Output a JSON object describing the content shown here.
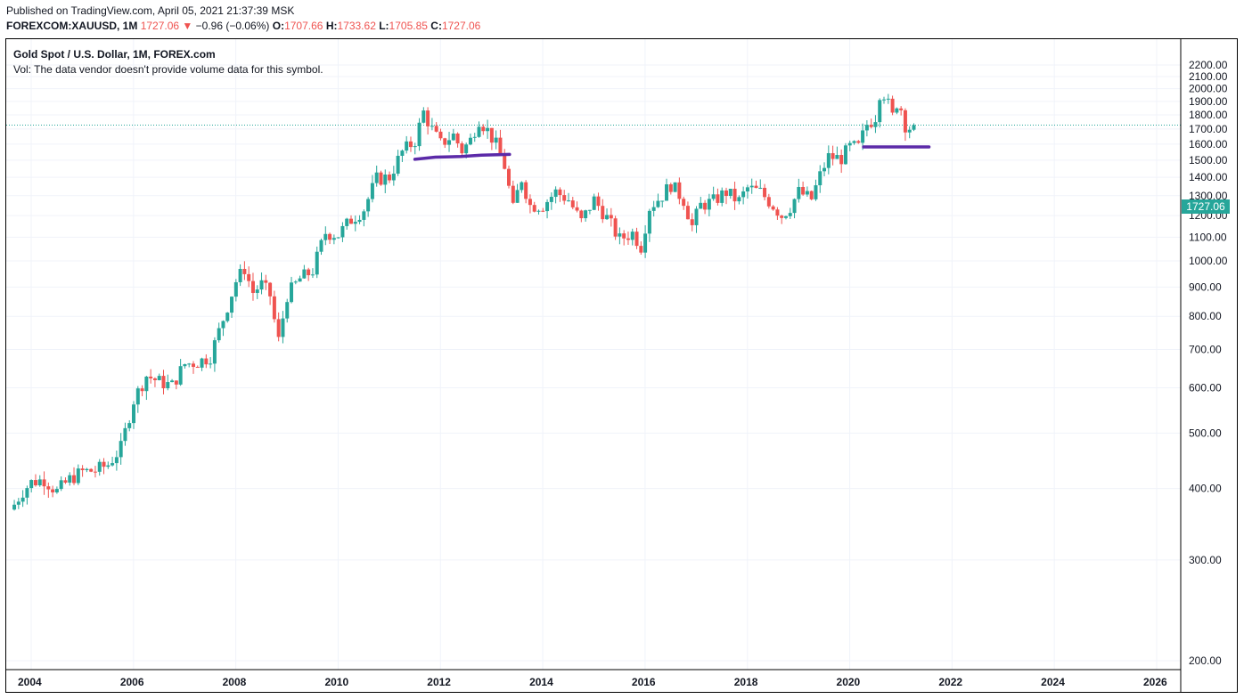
{
  "header": {
    "published": "Published on TradingView.com, April 05, 2021 21:37:39 MSK",
    "symbol": "FOREXCOM:XAUUSD, 1M",
    "last": "1727.06",
    "change_arrow": "▼",
    "change": "−0.96 (−0.06%)",
    "o_label": "O:",
    "o_value": "1707.66",
    "h_label": "H:",
    "h_value": "1733.62",
    "l_label": "L:",
    "l_value": "1705.85",
    "c_label": "C:",
    "c_value": "1727.06"
  },
  "legend": {
    "title": "Gold Spot / U.S. Dollar, 1M, FOREX.com",
    "volume_note": "Vol: The data vendor doesn't provide volume data for this symbol."
  },
  "colors": {
    "up": "#26a69a",
    "down": "#ef5350",
    "drawing": "#5b2aa8",
    "grid": "#f0f3fa"
  },
  "chart_data": {
    "type": "candlestick",
    "title": "Gold Spot / U.S. Dollar, 1M, FOREX.com",
    "xlabel": "",
    "ylabel": "",
    "ylim": [
      180,
      2240
    ],
    "xlim": [
      2003.6,
      2026.8
    ],
    "grid": true,
    "scale": "log",
    "y_ticks": [
      "2200.00",
      "2100.00",
      "2000.00",
      "1900.00",
      "1800.00",
      "1700.00",
      "1600.00",
      "1500.00",
      "1400.00",
      "1300.00",
      "1200.00",
      "1100.00",
      "1000.00",
      "900.00",
      "800.00",
      "700.00",
      "600.00",
      "500.00",
      "400.00",
      "300.00",
      "200.00"
    ],
    "x_ticks": [
      "2004",
      "2006",
      "2008",
      "2010",
      "2012",
      "2014",
      "2016",
      "2018",
      "2020",
      "2022",
      "2024",
      "2026"
    ],
    "last_price": "1727.06",
    "closes": [
      [
        2003.67,
        375
      ],
      [
        2003.83,
        395
      ],
      [
        2004.0,
        410
      ],
      [
        2004.25,
        415
      ],
      [
        2004.5,
        395
      ],
      [
        2004.75,
        415
      ],
      [
        2005.0,
        428
      ],
      [
        2005.25,
        430
      ],
      [
        2005.5,
        440
      ],
      [
        2005.75,
        470
      ],
      [
        2006.0,
        570
      ],
      [
        2006.25,
        630
      ],
      [
        2006.5,
        615
      ],
      [
        2006.75,
        605
      ],
      [
        2007.0,
        660
      ],
      [
        2007.25,
        665
      ],
      [
        2007.5,
        680
      ],
      [
        2007.75,
        790
      ],
      [
        2008.0,
        920
      ],
      [
        2008.17,
        970
      ],
      [
        2008.33,
        880
      ],
      [
        2008.5,
        910
      ],
      [
        2008.67,
        870
      ],
      [
        2008.83,
        720
      ],
      [
        2009.0,
        870
      ],
      [
        2009.25,
        930
      ],
      [
        2009.5,
        960
      ],
      [
        2009.75,
        1120
      ],
      [
        2010.0,
        1110
      ],
      [
        2010.25,
        1180
      ],
      [
        2010.5,
        1230
      ],
      [
        2010.75,
        1390
      ],
      [
        2011.0,
        1400
      ],
      [
        2011.25,
        1550
      ],
      [
        2011.5,
        1620
      ],
      [
        2011.67,
        1820
      ],
      [
        2011.83,
        1700
      ],
      [
        2012.0,
        1600
      ],
      [
        2012.25,
        1660
      ],
      [
        2012.42,
        1560
      ],
      [
        2012.58,
        1620
      ],
      [
        2012.75,
        1770
      ],
      [
        2012.92,
        1690
      ],
      [
        2013.08,
        1600
      ],
      [
        2013.25,
        1470
      ],
      [
        2013.42,
        1230
      ],
      [
        2013.58,
        1400
      ],
      [
        2013.75,
        1250
      ],
      [
        2014.0,
        1250
      ],
      [
        2014.25,
        1320
      ],
      [
        2014.5,
        1280
      ],
      [
        2014.75,
        1170
      ],
      [
        2015.0,
        1280
      ],
      [
        2015.25,
        1190
      ],
      [
        2015.5,
        1090
      ],
      [
        2015.75,
        1120
      ],
      [
        2015.92,
        1060
      ],
      [
        2016.08,
        1240
      ],
      [
        2016.33,
        1300
      ],
      [
        2016.5,
        1360
      ],
      [
        2016.75,
        1280
      ],
      [
        2016.92,
        1150
      ],
      [
        2017.08,
        1250
      ],
      [
        2017.33,
        1270
      ],
      [
        2017.58,
        1320
      ],
      [
        2017.83,
        1270
      ],
      [
        2018.0,
        1340
      ],
      [
        2018.25,
        1320
      ],
      [
        2018.5,
        1250
      ],
      [
        2018.67,
        1200
      ],
      [
        2018.83,
        1240
      ],
      [
        2019.0,
        1320
      ],
      [
        2019.25,
        1280
      ],
      [
        2019.42,
        1410
      ],
      [
        2019.58,
        1520
      ],
      [
        2019.83,
        1510
      ],
      [
        2020.0,
        1580
      ],
      [
        2020.17,
        1580
      ],
      [
        2020.33,
        1730
      ],
      [
        2020.5,
        1780
      ],
      [
        2020.58,
        1970
      ],
      [
        2020.67,
        1960
      ],
      [
        2020.75,
        1880
      ],
      [
        2020.83,
        1780
      ],
      [
        2020.92,
        1890
      ],
      [
        2021.0,
        1850
      ],
      [
        2021.08,
        1730
      ],
      [
        2021.17,
        1710
      ],
      [
        2021.25,
        1727.06
      ]
    ]
  }
}
